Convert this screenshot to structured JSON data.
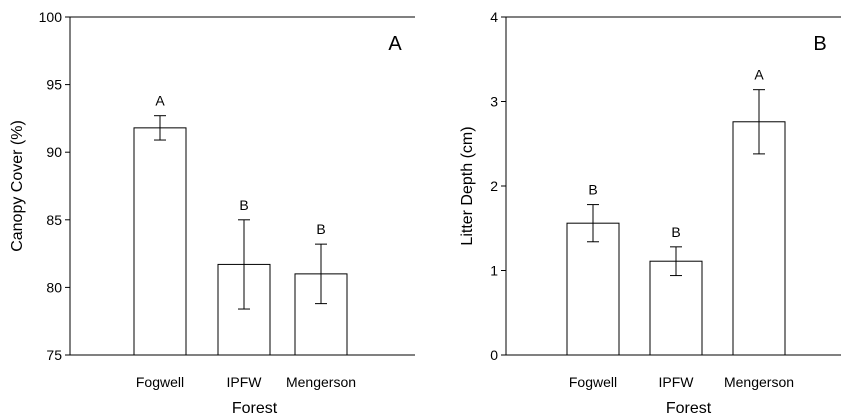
{
  "chart_data": [
    {
      "type": "bar",
      "panel_label": "A",
      "categories": [
        "Fogwell",
        "IPFW",
        "Mengerson"
      ],
      "values": [
        91.8,
        81.7,
        81.0
      ],
      "errors": [
        0.9,
        3.3,
        2.2
      ],
      "significance": [
        "A",
        "B",
        "B"
      ],
      "xlabel": "Forest",
      "ylabel": "Canopy Cover (%)",
      "ylim": [
        75,
        100
      ],
      "yticks": [
        75,
        80,
        85,
        90,
        95,
        100
      ],
      "grid": false
    },
    {
      "type": "bar",
      "panel_label": "B",
      "categories": [
        "Fogwell",
        "IPFW",
        "Mengerson"
      ],
      "values": [
        1.56,
        1.11,
        2.76
      ],
      "errors": [
        0.22,
        0.17,
        0.38
      ],
      "significance": [
        "B",
        "B",
        "A"
      ],
      "xlabel": "Forest",
      "ylabel": "Litter Depth (cm)",
      "ylim": [
        0,
        4
      ],
      "yticks": [
        0,
        1,
        2,
        3,
        4
      ],
      "grid": false
    }
  ]
}
